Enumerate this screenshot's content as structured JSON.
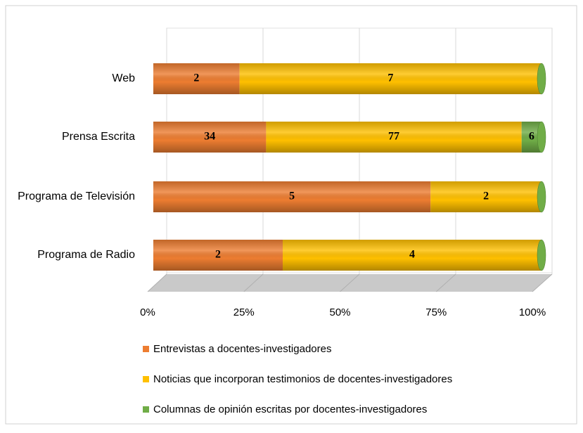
{
  "chart_data": {
    "type": "bar100h",
    "categories": [
      "Web",
      "Prensa Escrita",
      "Programa de Televisión",
      "Programa de Radio"
    ],
    "series": [
      {
        "name": "Entrevistas a docentes-investigadores",
        "color": "#ed7d31",
        "values": [
          2,
          34,
          5,
          2
        ]
      },
      {
        "name": "Noticias que incorporan testimonios de docentes-investigadores",
        "color": "#ffc000",
        "values": [
          7,
          77,
          2,
          4
        ]
      },
      {
        "name": "Columnas de opinión escritas por docentes-investigadores",
        "color": "#70ad47",
        "values": [
          0,
          6,
          0,
          0
        ]
      }
    ],
    "xlim": [
      0,
      100
    ],
    "xticks": [
      {
        "value": 0,
        "label": "0%"
      },
      {
        "value": 25,
        "label": "25%"
      },
      {
        "value": 50,
        "label": "50%"
      },
      {
        "value": 75,
        "label": "75%"
      },
      {
        "value": 100,
        "label": "100%"
      }
    ],
    "grid": true
  }
}
